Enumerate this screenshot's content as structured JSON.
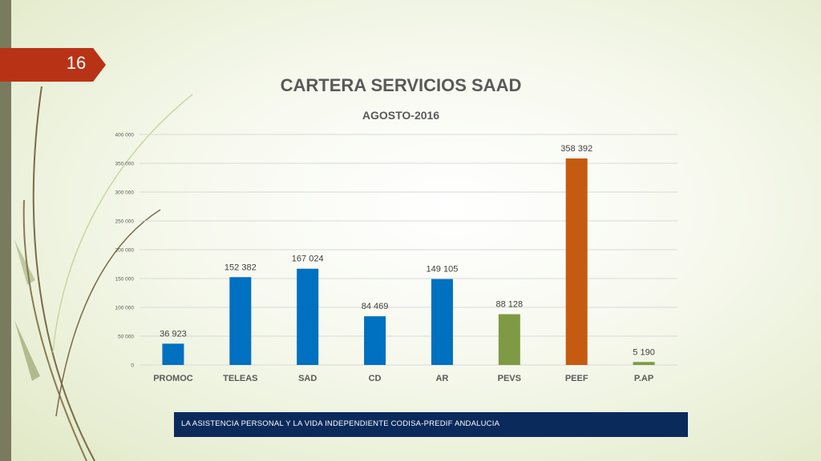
{
  "slide": {
    "number": "16"
  },
  "footer": {
    "text": "LA ASISTENCIA PERSONAL Y LA VIDA INDEPENDIENTE CODISA-PREDIF ANDALUCIA"
  },
  "chart_data": {
    "type": "bar",
    "title": "CARTERA SERVICIOS SAAD",
    "subtitle": "AGOSTO-2016",
    "categories": [
      "PROMOC",
      "TELEAS",
      "SAD",
      "CD",
      "AR",
      "PEVS",
      "PEEF",
      "P.AP"
    ],
    "values": [
      36923,
      152382,
      167024,
      84469,
      149105,
      88128,
      358392,
      5190
    ],
    "value_labels": [
      "36 923",
      "152 382",
      "167 024",
      "84 469",
      "149 105",
      "88 128",
      "358 392",
      "5 190"
    ],
    "bar_colors": [
      "#0070c0",
      "#0070c0",
      "#0070c0",
      "#0070c0",
      "#0070c0",
      "#7f9a45",
      "#c55a11",
      "#7f9a45"
    ],
    "yticks": [
      0,
      50000,
      100000,
      150000,
      200000,
      250000,
      300000,
      350000,
      400000
    ],
    "ytick_labels": [
      "0",
      "50 000",
      "100 000",
      "150 000",
      "200 000",
      "250 000",
      "300 000",
      "350 000",
      "400 000"
    ],
    "ylim": [
      0,
      400000
    ],
    "xlabel": "",
    "ylabel": "",
    "grid": true,
    "legend": "none"
  }
}
